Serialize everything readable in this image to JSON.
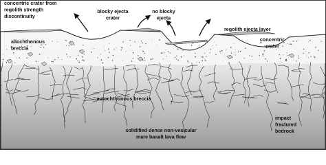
{
  "labels": [
    {
      "lines": [
        "concentric crater from",
        "regolith strength",
        "discontinuity"
      ]
    },
    {
      "lines": [
        "blocky ejecta",
        "crater"
      ]
    },
    {
      "lines": [
        "no blocky",
        "ejecta"
      ]
    },
    {
      "lines": [
        "regolith ejecta layer"
      ]
    },
    {
      "lines": [
        "concentric",
        "crater"
      ]
    },
    {
      "lines": [
        "allochthonous",
        "breccia"
      ]
    },
    {
      "lines": [
        "autochthonous breccia"
      ]
    },
    {
      "lines": [
        "impact",
        "fractured",
        "bedrock"
      ]
    },
    {
      "lines": [
        "solidified dense non-vesicular",
        "mare basalt lava flow"
      ]
    }
  ]
}
